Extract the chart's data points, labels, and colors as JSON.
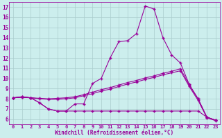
{
  "x": [
    0,
    1,
    2,
    3,
    4,
    5,
    6,
    7,
    8,
    9,
    10,
    11,
    12,
    13,
    14,
    15,
    16,
    17,
    18,
    19,
    20,
    21,
    22,
    23
  ],
  "line_main": [
    8.1,
    8.2,
    8.1,
    7.6,
    7.0,
    6.8,
    6.8,
    7.5,
    7.5,
    9.5,
    10.0,
    12.0,
    13.6,
    13.7,
    14.4,
    17.1,
    16.8,
    14.0,
    12.3,
    11.5,
    9.4,
    8.0,
    6.2,
    5.9
  ],
  "line_low": [
    8.1,
    8.2,
    8.1,
    7.6,
    7.0,
    6.8,
    6.8,
    6.8,
    6.8,
    6.8,
    6.8,
    6.8,
    6.8,
    6.8,
    6.8,
    6.8,
    6.8,
    6.8,
    6.8,
    6.8,
    6.8,
    6.8,
    6.2,
    5.9
  ],
  "line_upper": [
    8.1,
    8.15,
    8.1,
    8.05,
    8.0,
    8.05,
    8.1,
    8.2,
    8.4,
    8.65,
    8.9,
    9.1,
    9.35,
    9.6,
    9.8,
    10.05,
    10.25,
    10.5,
    10.7,
    10.95,
    9.35,
    8.0,
    6.2,
    5.9
  ],
  "line_mid": [
    8.1,
    8.15,
    8.1,
    8.0,
    7.95,
    7.95,
    8.0,
    8.1,
    8.3,
    8.5,
    8.75,
    8.95,
    9.2,
    9.45,
    9.65,
    9.9,
    10.1,
    10.35,
    10.55,
    10.75,
    9.2,
    7.85,
    6.15,
    5.85
  ],
  "color": "#990099",
  "bg_color": "#cceeed",
  "grid_color": "#aacccc",
  "xlabel": "Windchill (Refroidissement éolien,°C)",
  "ylim": [
    5.5,
    17.5
  ],
  "xlim": [
    -0.5,
    23.5
  ],
  "yticks": [
    6,
    7,
    8,
    9,
    10,
    11,
    12,
    13,
    14,
    15,
    16,
    17
  ],
  "xticks": [
    0,
    1,
    2,
    3,
    4,
    5,
    6,
    7,
    8,
    9,
    10,
    11,
    12,
    13,
    14,
    15,
    16,
    17,
    18,
    19,
    20,
    21,
    22,
    23
  ]
}
